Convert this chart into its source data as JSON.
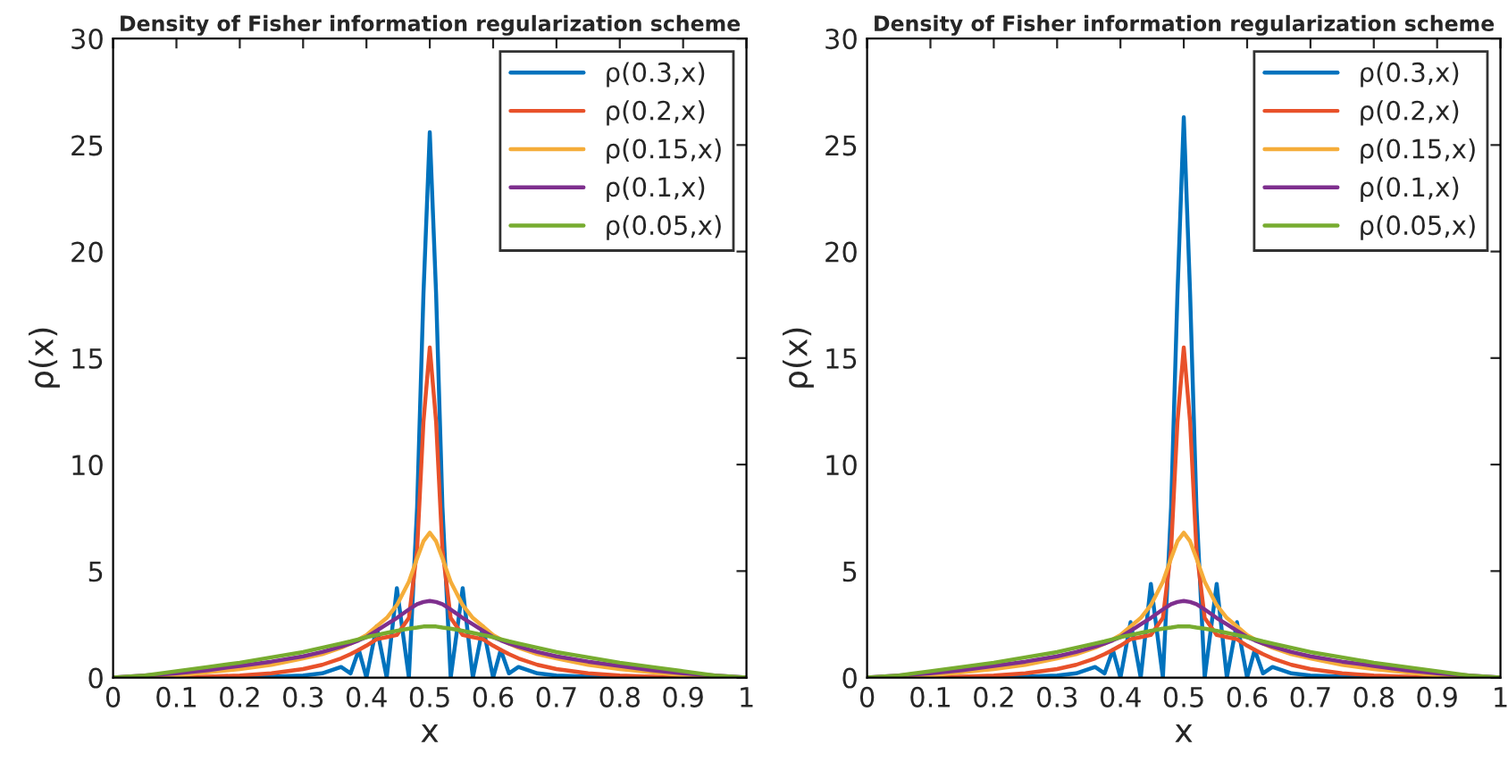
{
  "chart_data": [
    {
      "type": "line",
      "title": "Density of Fisher information regularization scheme",
      "xlabel": "x",
      "ylabel": "ρ(x)",
      "legend": "top right",
      "grid": false,
      "marker": "none",
      "line_style": "solid",
      "x": [
        0,
        0.05,
        0.1,
        0.15,
        0.2,
        0.25,
        0.3,
        0.33,
        0.36,
        0.375,
        0.388,
        0.4,
        0.416,
        0.432,
        0.448,
        0.467,
        0.48,
        0.49,
        0.5,
        0.51,
        0.52,
        0.533,
        0.552,
        0.568,
        0.584,
        0.6,
        0.612,
        0.625,
        0.64,
        0.67,
        0.7,
        0.75,
        0.8,
        0.85,
        0.9,
        0.95,
        1
      ],
      "xlim": [
        0,
        1
      ],
      "xticks": [
        0,
        0.1,
        0.2,
        0.3,
        0.4,
        0.5,
        0.6,
        0.7,
        0.8,
        0.9,
        1
      ],
      "ylim": [
        0,
        30
      ],
      "yticks": [
        0,
        5,
        10,
        15,
        20,
        25,
        30
      ],
      "series": [
        {
          "name": "ρ(0.3,x)",
          "color": "#0072bd",
          "values": [
            null,
            null,
            null,
            null,
            0,
            0.05,
            0.1,
            0.2,
            0.5,
            0.2,
            1.3,
            0,
            2.4,
            0,
            4.2,
            0,
            8,
            18,
            25.6,
            18,
            8,
            0,
            4.2,
            0,
            2.4,
            0,
            1.3,
            0.2,
            0.5,
            0.2,
            0.1,
            0.05,
            0,
            null,
            null,
            null,
            null
          ]
        },
        {
          "name": "ρ(0.2,x)",
          "color": "#e8512a",
          "values": [
            0,
            0,
            0,
            0.05,
            0.1,
            0.2,
            0.4,
            0.6,
            0.9,
            1.1,
            1.3,
            1.5,
            1.8,
            1.9,
            2,
            2.8,
            6,
            12,
            15.5,
            12,
            6,
            2.8,
            2,
            1.9,
            1.8,
            1.5,
            1.3,
            1.1,
            0.9,
            0.6,
            0.4,
            0.2,
            0.1,
            0.05,
            0,
            0,
            0
          ]
        },
        {
          "name": "ρ(0.15,x)",
          "color": "#f5ad3a",
          "values": [
            0,
            0.05,
            0.1,
            0.25,
            0.4,
            0.6,
            0.9,
            1.1,
            1.4,
            1.6,
            1.8,
            2,
            2.4,
            2.8,
            3.4,
            4.5,
            5.6,
            6.4,
            6.8,
            6.4,
            5.6,
            4.5,
            3.4,
            2.8,
            2.4,
            2,
            1.8,
            1.6,
            1.4,
            1.1,
            0.9,
            0.6,
            0.4,
            0.25,
            0.1,
            0.05,
            0
          ]
        },
        {
          "name": "ρ(0.1,x)",
          "color": "#7e2f8e",
          "values": [
            0,
            0.1,
            0.2,
            0.35,
            0.55,
            0.75,
            1,
            1.2,
            1.45,
            1.6,
            1.75,
            1.9,
            2.2,
            2.5,
            2.8,
            3.2,
            3.45,
            3.55,
            3.6,
            3.55,
            3.45,
            3.2,
            2.8,
            2.5,
            2.2,
            1.9,
            1.75,
            1.6,
            1.45,
            1.2,
            1,
            0.75,
            0.55,
            0.35,
            0.2,
            0.1,
            0
          ]
        },
        {
          "name": "ρ(0.05,x)",
          "color": "#77ac30",
          "values": [
            0,
            0.1,
            0.3,
            0.5,
            0.7,
            0.95,
            1.2,
            1.4,
            1.6,
            1.7,
            1.8,
            1.9,
            2,
            2.1,
            2.2,
            2.3,
            2.35,
            2.4,
            2.4,
            2.4,
            2.35,
            2.3,
            2.2,
            2.1,
            2,
            1.9,
            1.8,
            1.7,
            1.6,
            1.4,
            1.2,
            0.95,
            0.7,
            0.5,
            0.3,
            0.1,
            0
          ]
        }
      ]
    },
    {
      "type": "line",
      "title": "Density of Fisher information regularization scheme",
      "xlabel": "x",
      "ylabel": "ρ(x)",
      "legend": "top right",
      "grid": false,
      "marker": "none",
      "line_style": "solid",
      "x": [
        0,
        0.05,
        0.1,
        0.15,
        0.2,
        0.25,
        0.3,
        0.33,
        0.36,
        0.375,
        0.388,
        0.4,
        0.416,
        0.432,
        0.448,
        0.467,
        0.48,
        0.49,
        0.5,
        0.51,
        0.52,
        0.533,
        0.552,
        0.568,
        0.584,
        0.6,
        0.612,
        0.625,
        0.64,
        0.67,
        0.7,
        0.75,
        0.8,
        0.85,
        0.9,
        0.95,
        1
      ],
      "xlim": [
        0,
        1
      ],
      "xticks": [
        0,
        0.1,
        0.2,
        0.3,
        0.4,
        0.5,
        0.6,
        0.7,
        0.8,
        0.9,
        1
      ],
      "ylim": [
        0,
        30
      ],
      "yticks": [
        0,
        5,
        10,
        15,
        20,
        25,
        30
      ],
      "series": [
        {
          "name": "ρ(0.3,x)",
          "color": "#0072bd",
          "values": [
            null,
            null,
            null,
            null,
            0,
            0.05,
            0.1,
            0.2,
            0.5,
            0.2,
            1.3,
            0,
            2.6,
            0,
            4.4,
            0,
            8,
            18,
            26.3,
            18,
            8,
            0,
            4.4,
            0,
            2.6,
            0,
            1.3,
            0.2,
            0.5,
            0.2,
            0.1,
            0.05,
            0,
            null,
            null,
            null,
            null
          ]
        },
        {
          "name": "ρ(0.2,x)",
          "color": "#e8512a",
          "values": [
            0,
            0,
            0,
            0.05,
            0.1,
            0.2,
            0.4,
            0.6,
            0.9,
            1.1,
            1.3,
            1.5,
            1.8,
            1.9,
            2,
            2.8,
            6,
            12,
            15.5,
            12,
            6,
            2.8,
            2,
            1.9,
            1.8,
            1.5,
            1.3,
            1.1,
            0.9,
            0.6,
            0.4,
            0.2,
            0.1,
            0.05,
            0,
            0,
            0
          ]
        },
        {
          "name": "ρ(0.15,x)",
          "color": "#f5ad3a",
          "values": [
            0,
            0.05,
            0.1,
            0.25,
            0.4,
            0.6,
            0.9,
            1.1,
            1.4,
            1.6,
            1.8,
            2,
            2.4,
            2.8,
            3.4,
            4.5,
            5.6,
            6.4,
            6.8,
            6.4,
            5.6,
            4.5,
            3.4,
            2.8,
            2.4,
            2,
            1.8,
            1.6,
            1.4,
            1.1,
            0.9,
            0.6,
            0.4,
            0.25,
            0.1,
            0.05,
            0
          ]
        },
        {
          "name": "ρ(0.1,x)",
          "color": "#7e2f8e",
          "values": [
            0,
            0.1,
            0.2,
            0.35,
            0.55,
            0.75,
            1,
            1.2,
            1.45,
            1.6,
            1.75,
            1.9,
            2.2,
            2.5,
            2.8,
            3.2,
            3.45,
            3.55,
            3.6,
            3.55,
            3.45,
            3.2,
            2.8,
            2.5,
            2.2,
            1.9,
            1.75,
            1.6,
            1.45,
            1.2,
            1,
            0.75,
            0.55,
            0.35,
            0.2,
            0.1,
            0
          ]
        },
        {
          "name": "ρ(0.05,x)",
          "color": "#77ac30",
          "values": [
            0,
            0.1,
            0.3,
            0.5,
            0.7,
            0.95,
            1.2,
            1.4,
            1.6,
            1.7,
            1.8,
            1.9,
            2,
            2.1,
            2.2,
            2.3,
            2.35,
            2.4,
            2.4,
            2.4,
            2.35,
            2.3,
            2.2,
            2.1,
            2,
            1.9,
            1.8,
            1.7,
            1.6,
            1.4,
            1.2,
            0.95,
            0.7,
            0.5,
            0.3,
            0.1,
            0
          ]
        }
      ]
    }
  ]
}
